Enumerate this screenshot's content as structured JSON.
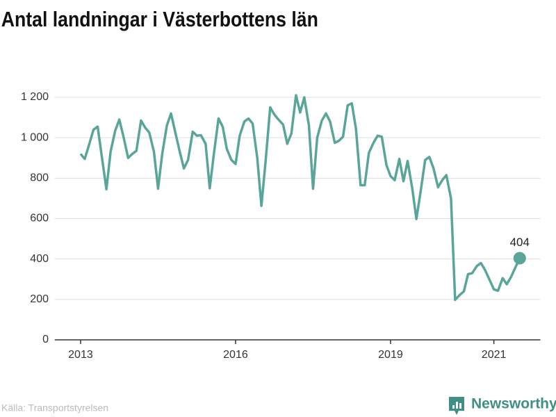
{
  "chart_data": {
    "type": "line",
    "title": "Antal landningar i Västerbottens län",
    "source": "Källa: Transportstyrelsen",
    "brand": "Newsworthy",
    "x": [
      2013.0,
      2013.08,
      2013.17,
      2013.25,
      2013.33,
      2013.42,
      2013.5,
      2013.58,
      2013.67,
      2013.75,
      2013.83,
      2013.92,
      2014.0,
      2014.08,
      2014.17,
      2014.25,
      2014.33,
      2014.42,
      2014.5,
      2014.58,
      2014.67,
      2014.75,
      2014.83,
      2014.92,
      2015.0,
      2015.08,
      2015.17,
      2015.25,
      2015.33,
      2015.42,
      2015.5,
      2015.58,
      2015.67,
      2015.75,
      2015.83,
      2015.92,
      2016.0,
      2016.08,
      2016.17,
      2016.25,
      2016.33,
      2016.42,
      2016.5,
      2016.58,
      2016.67,
      2016.75,
      2016.83,
      2016.92,
      2017.0,
      2017.08,
      2017.17,
      2017.25,
      2017.33,
      2017.42,
      2017.5,
      2017.58,
      2017.67,
      2017.75,
      2017.83,
      2017.92,
      2018.0,
      2018.08,
      2018.17,
      2018.25,
      2018.33,
      2018.42,
      2018.5,
      2018.58,
      2018.67,
      2018.75,
      2018.83,
      2018.92,
      2019.0,
      2019.08,
      2019.17,
      2019.25,
      2019.33,
      2019.42,
      2019.5,
      2019.58,
      2019.67,
      2019.75,
      2019.83,
      2019.92,
      2020.0,
      2020.08,
      2020.17,
      2020.25,
      2020.33,
      2020.42,
      2020.5,
      2020.58,
      2020.67,
      2020.75,
      2020.83,
      2020.92,
      2021.0,
      2021.08,
      2021.17,
      2021.25,
      2021.33,
      2021.42,
      2021.5
    ],
    "series": [
      {
        "color": "#5aa59a",
        "values": [
          920,
          895,
          970,
          1040,
          1055,
          890,
          745,
          930,
          1035,
          1090,
          1005,
          900,
          920,
          935,
          1085,
          1050,
          1025,
          930,
          748,
          920,
          1060,
          1120,
          1030,
          930,
          848,
          890,
          1030,
          1010,
          1012,
          970,
          750,
          920,
          1095,
          1055,
          945,
          890,
          870,
          1010,
          1080,
          1095,
          1070,
          900,
          663,
          880,
          1150,
          1115,
          1090,
          1065,
          970,
          1020,
          1210,
          1125,
          1200,
          1060,
          748,
          1000,
          1085,
          1120,
          1080,
          975,
          985,
          1005,
          1160,
          1170,
          1045,
          765,
          765,
          925,
          975,
          1010,
          1005,
          865,
          810,
          790,
          895,
          785,
          885,
          750,
          598,
          730,
          890,
          905,
          850,
          755,
          790,
          815,
          700,
          198,
          220,
          240,
          325,
          330,
          365,
          380,
          345,
          295,
          250,
          243,
          305,
          275,
          310,
          360,
          404
        ]
      }
    ],
    "annotate_last": true,
    "xlim": [
      2012.5,
      2021.9
    ],
    "xticks": [
      2013,
      2016,
      2019,
      2021
    ],
    "ylim": [
      0,
      1200
    ],
    "yticks": [
      0,
      200,
      400,
      600,
      800,
      {
        "value": 1000,
        "label": "1 000"
      },
      {
        "value": 1200,
        "label": "1 200"
      }
    ],
    "grid": true
  }
}
